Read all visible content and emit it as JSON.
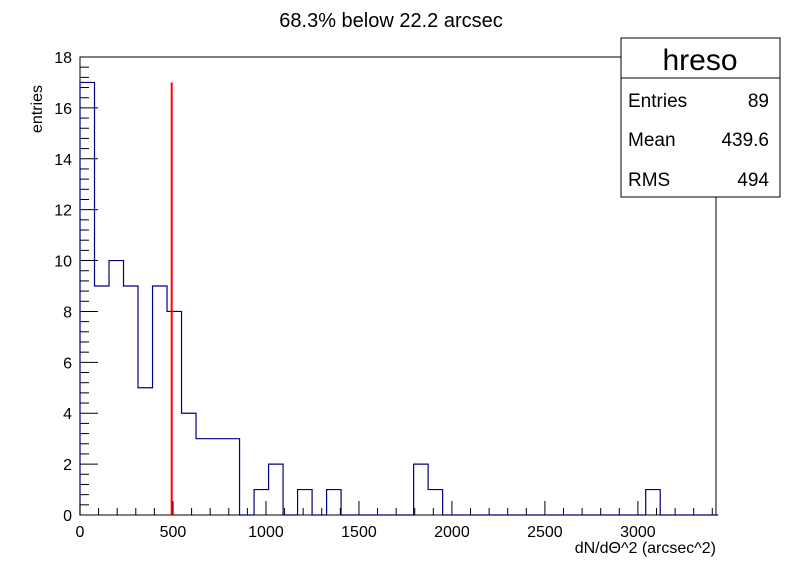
{
  "chart_data": {
    "type": "histogram",
    "title": "68.3% below 22.2 arcsec",
    "xlabel": "dN/dΘ^2 (arcsec^2)",
    "ylabel": "entries",
    "xlim": [
      0,
      3420
    ],
    "ylim": [
      0,
      18
    ],
    "x_tick_labels": [
      "0",
      "500",
      "1000",
      "1500",
      "2000",
      "2500",
      "3000"
    ],
    "y_tick_labels": [
      "0",
      "2",
      "4",
      "6",
      "8",
      "10",
      "12",
      "14",
      "16",
      "18"
    ],
    "bin_width": 78,
    "bin_values": [
      17,
      9,
      10,
      9,
      5,
      9,
      8,
      4,
      3,
      3,
      3,
      0,
      1,
      2,
      0,
      1,
      0,
      1,
      0,
      0,
      0,
      0,
      0,
      2,
      1,
      0,
      0,
      0,
      0,
      0,
      0,
      0,
      0,
      0,
      0,
      0,
      0,
      0,
      0,
      1,
      0,
      0,
      0,
      0
    ],
    "vline": {
      "x": 493,
      "color": "#ff0000"
    },
    "histogram_color": "#000080",
    "grid": false,
    "stats_box": {
      "title": "hreso",
      "placement": "top-right",
      "rows": [
        {
          "label": "Entries",
          "value": "89"
        },
        {
          "label": "Mean",
          "value": "439.6"
        },
        {
          "label": "RMS",
          "value": "494"
        }
      ]
    }
  }
}
